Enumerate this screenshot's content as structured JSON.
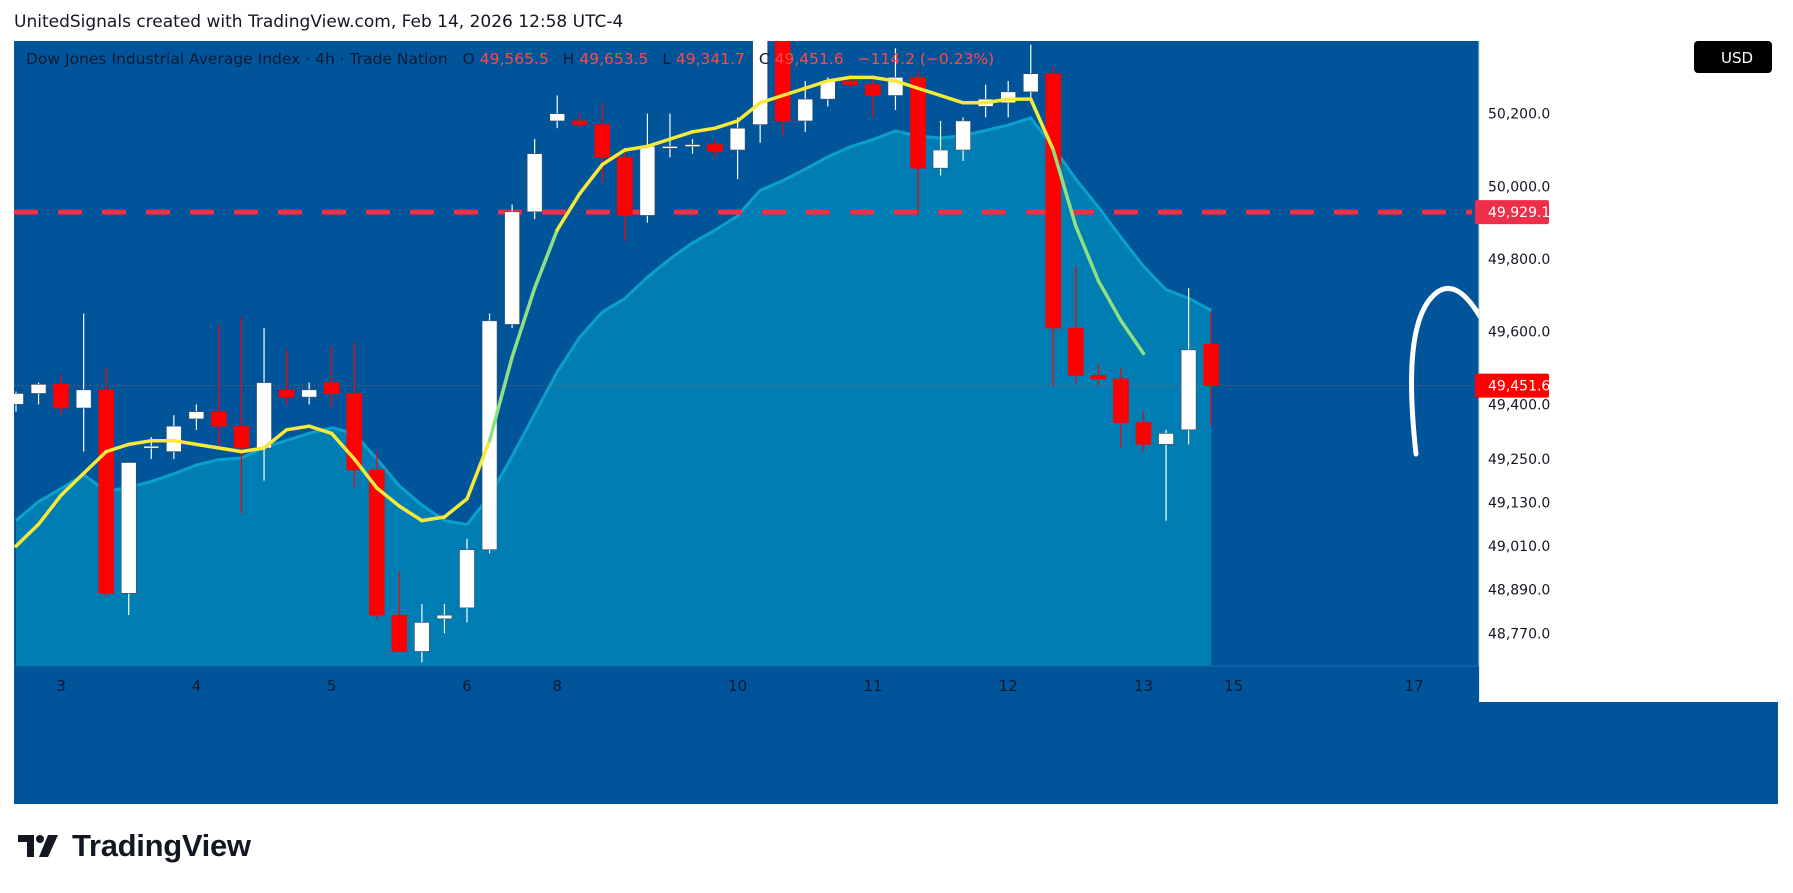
{
  "credit": "UnitedSignals created with TradingView.com, Feb 14, 2026 12:58 UTC-4",
  "brand": "TradingView",
  "header": {
    "symbol": "Dow Jones Industrial Average Index · 4h · Trade Nation",
    "o_label": "O",
    "o_value": "49,565.5",
    "h_label": "H",
    "h_value": "49,653.5",
    "l_label": "L",
    "l_value": "49,341.7",
    "c_label": "C",
    "c_value": "49,451.6",
    "change": "−114.2 (−0.23%)"
  },
  "currency_button": "USD",
  "colors": {
    "background": "#00559a",
    "area": "#0081b4",
    "area_line": "#0aa0cc",
    "ema": "#f6e93a",
    "ema_cross": "#8ee080",
    "bull": "#ffffff",
    "bear": "#ff0000",
    "target_line": "#ef2f4a",
    "annotation": "#ffffff"
  },
  "annotation": {
    "target_text": "49929",
    "target_price": 49929.1,
    "path_icon": "zigzag-up-arrow-icon"
  },
  "chart_data": {
    "type": "candlestick",
    "symbol": "Dow Jones Industrial Average Index",
    "interval": "4h",
    "currency": "USD",
    "y_range": [
      48680,
      50400
    ],
    "y_ticks": [
      {
        "value": 50200,
        "label": "50,200.0"
      },
      {
        "value": 50000,
        "label": "50,000.0"
      },
      {
        "value": 49800,
        "label": "49,800.0"
      },
      {
        "value": 49600,
        "label": "49,600.0"
      },
      {
        "value": 49400,
        "label": "49,400.0"
      },
      {
        "value": 49250,
        "label": "49,250.0"
      },
      {
        "value": 49130,
        "label": "49,130.0"
      },
      {
        "value": 49010,
        "label": "49,010.0"
      },
      {
        "value": 48890,
        "label": "48,890.0"
      },
      {
        "value": 48770,
        "label": "48,770.0"
      }
    ],
    "price_labels": [
      {
        "value": 49929.1,
        "label": "49,929.1"
      },
      {
        "value": 49451.6,
        "label": "49,451.6"
      }
    ],
    "x_ticks": [
      {
        "index": 2,
        "label": "3"
      },
      {
        "index": 8,
        "label": "4"
      },
      {
        "index": 14,
        "label": "5"
      },
      {
        "index": 20,
        "label": "6"
      },
      {
        "index": 24,
        "label": "8"
      },
      {
        "index": 32,
        "label": "10"
      },
      {
        "index": 38,
        "label": "11"
      },
      {
        "index": 44,
        "label": "12"
      },
      {
        "index": 50,
        "label": "13"
      },
      {
        "index": 54,
        "label": "15"
      },
      {
        "index": 62,
        "label": "17"
      }
    ],
    "candles": [
      {
        "o": 49400,
        "h": 49435,
        "l": 49380,
        "c": 49430
      },
      {
        "o": 49430,
        "h": 49460,
        "l": 49400,
        "c": 49455
      },
      {
        "o": 49455,
        "h": 49480,
        "l": 49370,
        "c": 49390
      },
      {
        "o": 49390,
        "h": 49650,
        "l": 49270,
        "c": 49440
      },
      {
        "o": 49440,
        "h": 49500,
        "l": 48870,
        "c": 48880
      },
      {
        "o": 48880,
        "h": 49240,
        "l": 48820,
        "c": 49240
      },
      {
        "o": 49280,
        "h": 49310,
        "l": 49250,
        "c": 49285
      },
      {
        "o": 49270,
        "h": 49370,
        "l": 49250,
        "c": 49340
      },
      {
        "o": 49360,
        "h": 49400,
        "l": 49330,
        "c": 49380
      },
      {
        "o": 49380,
        "h": 49620,
        "l": 49280,
        "c": 49340
      },
      {
        "o": 49340,
        "h": 49640,
        "l": 49100,
        "c": 49280
      },
      {
        "o": 49280,
        "h": 49610,
        "l": 49190,
        "c": 49460
      },
      {
        "o": 49440,
        "h": 49550,
        "l": 49400,
        "c": 49420
      },
      {
        "o": 49420,
        "h": 49460,
        "l": 49400,
        "c": 49440
      },
      {
        "o": 49460,
        "h": 49560,
        "l": 49390,
        "c": 49430
      },
      {
        "o": 49430,
        "h": 49570,
        "l": 49170,
        "c": 49220
      },
      {
        "o": 49220,
        "h": 49270,
        "l": 48810,
        "c": 48820
      },
      {
        "o": 48820,
        "h": 48940,
        "l": 48720,
        "c": 48720
      },
      {
        "o": 48720,
        "h": 48850,
        "l": 48690,
        "c": 48800
      },
      {
        "o": 48810,
        "h": 48850,
        "l": 48770,
        "c": 48820
      },
      {
        "o": 48840,
        "h": 49030,
        "l": 48800,
        "c": 49000
      },
      {
        "o": 49000,
        "h": 49650,
        "l": 48990,
        "c": 49630
      },
      {
        "o": 49620,
        "h": 49950,
        "l": 49610,
        "c": 49930
      },
      {
        "o": 49930,
        "h": 50130,
        "l": 49910,
        "c": 50090
      },
      {
        "o": 50180,
        "h": 50250,
        "l": 50160,
        "c": 50200
      },
      {
        "o": 50180,
        "h": 50200,
        "l": 50160,
        "c": 50170
      },
      {
        "o": 50170,
        "h": 50230,
        "l": 50010,
        "c": 50080
      },
      {
        "o": 50080,
        "h": 50100,
        "l": 49850,
        "c": 49920
      },
      {
        "o": 49920,
        "h": 50200,
        "l": 49900,
        "c": 50110
      },
      {
        "o": 50105,
        "h": 50200,
        "l": 50080,
        "c": 50110
      },
      {
        "o": 50110,
        "h": 50130,
        "l": 50090,
        "c": 50115
      },
      {
        "o": 50115,
        "h": 50130,
        "l": 50080,
        "c": 50095
      },
      {
        "o": 50100,
        "h": 50190,
        "l": 50020,
        "c": 50160
      },
      {
        "o": 50170,
        "h": 50420,
        "l": 50120,
        "c": 50420
      },
      {
        "o": 50420,
        "h": 50420,
        "l": 50140,
        "c": 50180
      },
      {
        "o": 50180,
        "h": 50290,
        "l": 50150,
        "c": 50240
      },
      {
        "o": 50240,
        "h": 50300,
        "l": 50220,
        "c": 50290
      },
      {
        "o": 50290,
        "h": 50310,
        "l": 50270,
        "c": 50280
      },
      {
        "o": 50280,
        "h": 50300,
        "l": 50190,
        "c": 50250
      },
      {
        "o": 50250,
        "h": 50380,
        "l": 50210,
        "c": 50300
      },
      {
        "o": 50300,
        "h": 50320,
        "l": 49920,
        "c": 50050
      },
      {
        "o": 50050,
        "h": 50180,
        "l": 50030,
        "c": 50100
      },
      {
        "o": 50100,
        "h": 50190,
        "l": 50070,
        "c": 50180
      },
      {
        "o": 50220,
        "h": 50280,
        "l": 50190,
        "c": 50240
      },
      {
        "o": 50230,
        "h": 50290,
        "l": 50190,
        "c": 50260
      },
      {
        "o": 50260,
        "h": 50390,
        "l": 50230,
        "c": 50310
      },
      {
        "o": 50310,
        "h": 50330,
        "l": 49450,
        "c": 49610
      },
      {
        "o": 49610,
        "h": 49780,
        "l": 49460,
        "c": 49480
      },
      {
        "o": 49480,
        "h": 49510,
        "l": 49450,
        "c": 49470
      },
      {
        "o": 49470,
        "h": 49500,
        "l": 49280,
        "c": 49350
      },
      {
        "o": 49350,
        "h": 49380,
        "l": 49270,
        "c": 49290
      },
      {
        "o": 49290,
        "h": 49330,
        "l": 49080,
        "c": 49320
      },
      {
        "o": 49330,
        "h": 49720,
        "l": 49290,
        "c": 49550
      },
      {
        "o": 49565.5,
        "h": 49653.5,
        "l": 49341.7,
        "c": 49451.6
      }
    ],
    "ema": [
      49010,
      49070,
      49150,
      49210,
      49270,
      49290,
      49300,
      49300,
      49290,
      49280,
      49270,
      49280,
      49330,
      49340,
      49320,
      49250,
      49170,
      49120,
      49080,
      49090,
      49140,
      49300,
      49530,
      49720,
      49880,
      49980,
      50060,
      50100,
      50110,
      50130,
      50150,
      50160,
      50180,
      50230,
      50250,
      50270,
      50290,
      50300,
      50300,
      50290,
      50270,
      50250,
      50230,
      50230,
      50240,
      50240,
      50100,
      49890,
      49740,
      49630,
      49540
    ]
  }
}
